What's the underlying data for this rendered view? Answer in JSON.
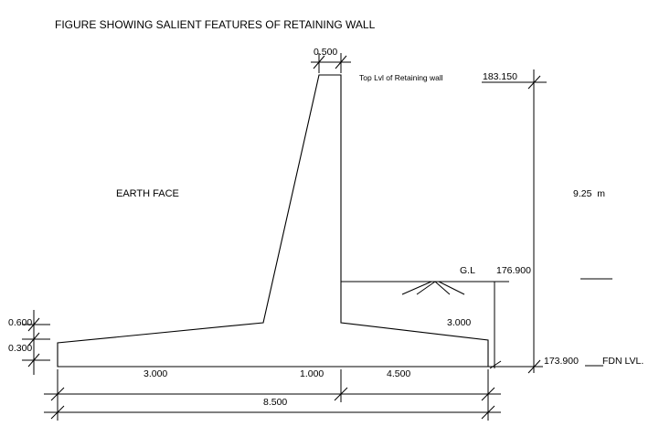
{
  "title": "FIGURE SHOWING SALIENT FEATURES OF RETAINING WALL",
  "labels": {
    "earth_face": "EARTH FACE",
    "top_level": "Top Lvl of Retaining wall",
    "ground_level": "G.L",
    "foundation_level": "FDN LVL."
  },
  "levels": {
    "top": "183.150",
    "ground": "176.900",
    "foundation": "173.900"
  },
  "dimensions": {
    "top_width": "0.500",
    "height": "9.25  m",
    "heel_thickness_top": "0.600",
    "heel_thickness_edge": "0.300",
    "heel_length": "3.000",
    "stem_base": "1.000",
    "toe_length": "4.500",
    "total_base": "8.500",
    "toe_depth": "3.000"
  }
}
